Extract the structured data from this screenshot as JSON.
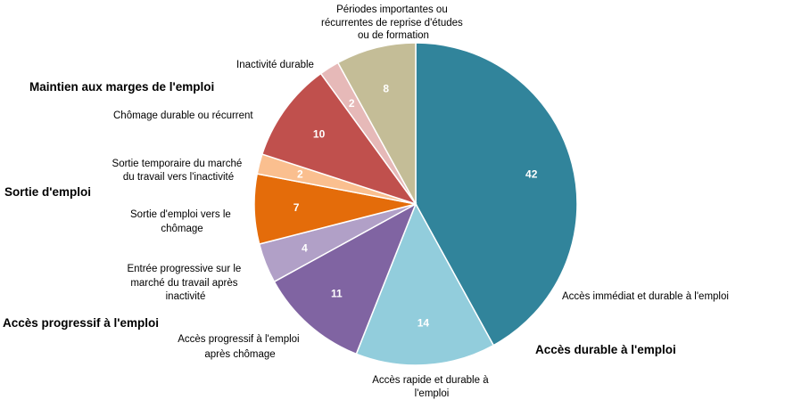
{
  "chart_data": {
    "type": "pie",
    "slices": [
      {
        "label": "Accès immédiat et durable à l'emploi",
        "value": 42,
        "color": "#31849b"
      },
      {
        "label": "Accès rapide et durable à l'emploi",
        "value": 14,
        "color": "#92cddc"
      },
      {
        "label": "Accès progressif à l'emploi après chômage",
        "value": 11,
        "color": "#8064a2"
      },
      {
        "label": "Entrée progressive sur le marché du travail après inactivité",
        "value": 4,
        "color": "#b1a0c7"
      },
      {
        "label": "Sortie d'emploi vers le chômage",
        "value": 7,
        "color": "#e46c0a"
      },
      {
        "label": "Sortie temporaire du marché du travail vers l'inactivité",
        "value": 2,
        "color": "#fabf8f"
      },
      {
        "label": "Chômage durable ou récurrent",
        "value": 10,
        "color": "#c0504d"
      },
      {
        "label": "Inactivité durable",
        "value": 2,
        "color": "#e6b9b8"
      },
      {
        "label": "Périodes importantes ou récurrentes de reprise d'études ou de formation",
        "value": 8,
        "color": "#c4bd97"
      }
    ],
    "category_labels": [
      [
        "Accès immédiat et durable à l'emploi"
      ],
      [
        "Accès rapide et durable à",
        "l'emploi"
      ],
      [
        "Accès progressif à l'emploi",
        "après chômage"
      ],
      [
        "Entrée progressive sur le",
        "marché du travail après",
        "inactivité"
      ],
      [
        "Sortie d'emploi vers le",
        "chômage"
      ],
      [
        "Sortie temporaire du marché",
        "du travail vers l'inactivité"
      ],
      [
        "Chômage durable ou récurrent"
      ],
      [
        "Inactivité durable"
      ],
      [
        "Périodes importantes ou",
        "récurrentes de reprise d'études",
        "ou de formation"
      ]
    ],
    "groups": [
      "Accès durable à l'emploi",
      "Accès progressif à l'emploi",
      "Sortie d'emploi",
      "Maintien aux marges de l'emploi"
    ]
  }
}
